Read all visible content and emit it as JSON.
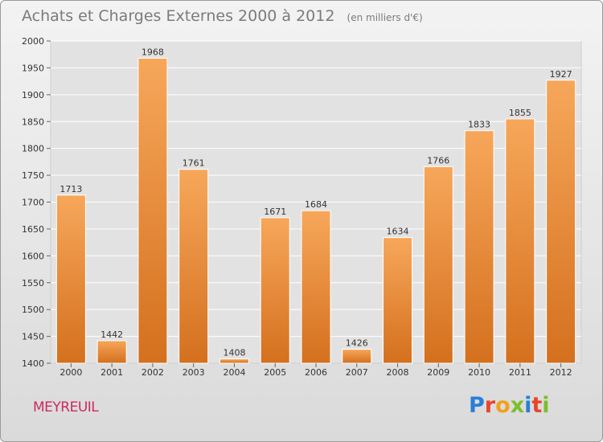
{
  "header": {
    "title": "Achats et Charges Externes 2000 à 2012",
    "subtitle": "(en milliers d'€)"
  },
  "footer": {
    "commune": "MEYREUIL",
    "logo_text": "Proxiti",
    "logo_letters": [
      {
        "char": "P",
        "color": "#2a7fd6"
      },
      {
        "char": "r",
        "color": "#e8452a"
      },
      {
        "char": "o",
        "color": "#f2a11c"
      },
      {
        "char": "x",
        "color": "#7bbf2a"
      },
      {
        "char": "i",
        "color": "#2a7fd6"
      },
      {
        "char": "t",
        "color": "#e8452a"
      },
      {
        "char": "i",
        "color": "#7bbf2a"
      }
    ]
  },
  "colors": {
    "bar_top": "#f7a75a",
    "bar_bottom": "#d4701e",
    "grid": "#ffffff",
    "axis_text": "#333333"
  },
  "chart_data": {
    "type": "bar",
    "title": "Achats et Charges Externes 2000 à 2012",
    "subtitle": "(en milliers d'€)",
    "categories": [
      "2000",
      "2001",
      "2002",
      "2003",
      "2004",
      "2005",
      "2006",
      "2007",
      "2008",
      "2009",
      "2010",
      "2011",
      "2012"
    ],
    "values": [
      1713,
      1442,
      1968,
      1761,
      1408,
      1671,
      1684,
      1426,
      1634,
      1766,
      1833,
      1855,
      1927
    ],
    "xlabel": "",
    "ylabel": "",
    "ylim": [
      1400,
      2000
    ],
    "yticks": [
      1400,
      1450,
      1500,
      1550,
      1600,
      1650,
      1700,
      1750,
      1800,
      1850,
      1900,
      1950,
      2000
    ],
    "grid": true,
    "legend": "none"
  }
}
